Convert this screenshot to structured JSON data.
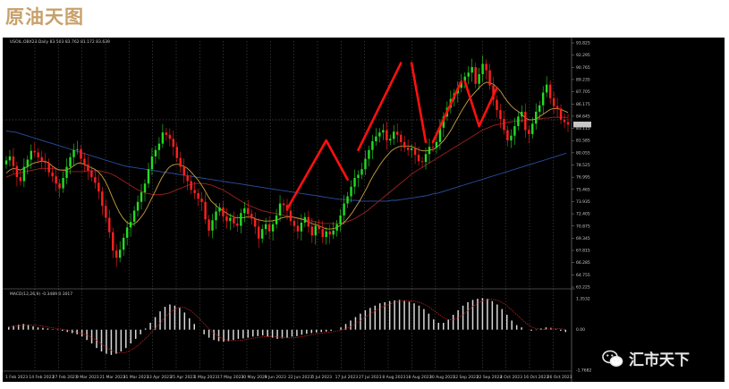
{
  "header": {
    "title": "原油天图"
  },
  "chart_info": {
    "symbol_line": "USOIL.OBX23.Daily 83.503 83.762 81.172 83.639",
    "macd_label": "MACD(12,26,9) -0.3489 0.3017",
    "price_tag": "83.639"
  },
  "watermark": {
    "text": "汇市天下",
    "icon": "wechat-icon"
  },
  "colors": {
    "bull": "#22dd22",
    "bear": "#ff2020",
    "ma_fast": "#c8a040",
    "ma_mid": "#a02020",
    "ma_slow": "#2a4fa0",
    "trend": "#ff1010"
  },
  "chart_data": {
    "type": "candlestick",
    "y_ticks": [
      "93.825",
      "92.295",
      "90.765",
      "89.235",
      "87.705",
      "86.175",
      "84.645",
      "83.115",
      "81.585",
      "80.055",
      "78.525",
      "76.995",
      "75.465",
      "73.935",
      "72.405",
      "70.875",
      "69.345",
      "67.815",
      "66.285",
      "64.755",
      "63.225"
    ],
    "ylim": [
      63.225,
      93.825
    ],
    "x_ticks": [
      "1 Feb 2023",
      "14 Feb 2023",
      "27 Feb 2023",
      "9 Mar 2023",
      "21 Mar 2023",
      "31 Mar 2023",
      "13 Apr 2023",
      "25 Apr 2023",
      "5 May 2023",
      "17 May 2023",
      "30 May 2023",
      "9 Jun 2023",
      "22 Jun 2023",
      "5 Jul 2023",
      "17 Jul 2023",
      "27 Jul 2023",
      "8 Aug 2023",
      "18 Aug 2023",
      "30 Aug 2023",
      "12 Sep 2023",
      "22 Sep 2023",
      "4 Oct 2023",
      "16 Oct 2023",
      "26 Oct 2023"
    ],
    "close": [
      79.1,
      79.6,
      78.4,
      77.0,
      76.5,
      78.3,
      79.2,
      80.3,
      80.1,
      79.5,
      79.0,
      78.8,
      77.6,
      77.1,
      76.2,
      75.6,
      76.9,
      78.3,
      79.5,
      80.4,
      80.5,
      79.3,
      78.6,
      77.8,
      77.0,
      76.3,
      75.2,
      73.4,
      71.9,
      70.1,
      67.8,
      66.9,
      67.9,
      69.4,
      70.7,
      71.4,
      72.8,
      73.9,
      75.1,
      76.2,
      78.0,
      79.6,
      80.4,
      81.2,
      82.6,
      82.3,
      81.8,
      80.8,
      79.4,
      78.3,
      77.2,
      76.5,
      75.4,
      75.0,
      74.3,
      73.9,
      71.7,
      70.3,
      71.6,
      72.7,
      73.2,
      72.1,
      71.5,
      71.9,
      71.2,
      70.9,
      72.5,
      73.1,
      72.4,
      71.8,
      70.8,
      69.3,
      70.5,
      71.1,
      70.2,
      71.1,
      72.2,
      73.7,
      73.5,
      72.8,
      71.5,
      70.9,
      70.2,
      71.3,
      72.0,
      70.8,
      69.7,
      70.9,
      70.5,
      69.5,
      70.2,
      69.8,
      70.3,
      71.1,
      72.2,
      73.7,
      74.6,
      75.8,
      76.9,
      77.3,
      78.0,
      79.3,
      80.4,
      81.5,
      82.1,
      82.6,
      82.9,
      81.6,
      81.8,
      82.7,
      82.3,
      81.4,
      80.7,
      80.4,
      80.6,
      79.8,
      79.0,
      78.9,
      79.9,
      80.8,
      80.7,
      81.4,
      83.2,
      84.6,
      85.7,
      86.8,
      87.5,
      88.2,
      88.9,
      89.6,
      90.1,
      90.8,
      88.7,
      89.9,
      91.2,
      90.4,
      88.5,
      86.7,
      85.4,
      84.3,
      82.9,
      81.6,
      82.2,
      83.4,
      84.6,
      85.2,
      82.9,
      82.4,
      83.7,
      85.2,
      86.0,
      87.6,
      88.6,
      86.9,
      85.9,
      85.6,
      84.2,
      83.9,
      83.6
    ],
    "ma_fast": [
      77.5,
      77.9,
      78.1,
      78.0,
      77.9,
      78.1,
      78.3,
      78.6,
      78.8,
      78.9,
      79.0,
      79.0,
      78.8,
      78.4,
      78.1,
      77.9,
      77.9,
      77.9,
      78.1,
      78.4,
      78.7,
      78.8,
      78.6,
      78.4,
      78.2,
      78.0,
      77.7,
      77.2,
      76.5,
      75.6,
      74.5,
      73.5,
      72.6,
      71.9,
      71.4,
      71.1,
      71.1,
      71.4,
      71.9,
      72.5,
      73.3,
      74.2,
      75.1,
      76.0,
      76.9,
      77.6,
      78.2,
      78.5,
      78.6,
      78.6,
      78.4,
      78.2,
      77.8,
      77.3,
      76.8,
      76.2,
      75.5,
      74.7,
      74.0,
      73.6,
      73.2,
      72.9,
      72.6,
      72.3,
      72.1,
      71.9,
      71.9,
      71.9,
      72.0,
      72.0,
      71.9,
      71.7,
      71.6,
      71.5,
      71.5,
      71.5,
      71.6,
      71.7,
      71.9,
      72.0,
      72.0,
      72.0,
      71.9,
      71.8,
      71.7,
      71.5,
      71.3,
      71.1,
      71.0,
      70.8,
      70.6,
      70.5,
      70.5,
      70.6,
      70.8,
      71.1,
      71.5,
      72.0,
      72.6,
      73.3,
      74.0,
      74.8,
      75.6,
      76.5,
      77.3,
      78.0,
      78.7,
      79.3,
      79.8,
      80.3,
      80.6,
      80.8,
      80.9,
      80.9,
      80.9,
      80.8,
      80.6,
      80.4,
      80.3,
      80.3,
      80.4,
      80.5,
      80.8,
      81.2,
      81.7,
      82.3,
      83.0,
      83.8,
      84.6,
      85.4,
      86.1,
      86.8,
      87.3,
      87.8,
      88.3,
      88.7,
      88.9,
      88.8,
      88.6,
      88.2,
      87.7,
      87.0,
      86.4,
      85.9,
      85.5,
      85.2,
      84.8,
      84.4,
      84.2,
      84.2,
      84.3,
      84.6,
      84.9,
      85.2,
      85.5,
      85.6,
      85.6,
      85.5,
      85.3,
      85.1
    ],
    "ma_mid": [
      77.0,
      77.2,
      77.4,
      77.5,
      77.6,
      77.7,
      77.8,
      77.9,
      78.0,
      78.1,
      78.1,
      78.1,
      78.1,
      78.0,
      77.9,
      77.8,
      77.7,
      77.7,
      77.7,
      77.7,
      77.7,
      77.8,
      77.8,
      77.8,
      77.8,
      77.7,
      77.6,
      77.4,
      77.2,
      76.9,
      76.6,
      76.3,
      76.0,
      75.7,
      75.4,
      75.2,
      75.0,
      74.9,
      74.8,
      74.8,
      74.8,
      74.9,
      75.0,
      75.2,
      75.4,
      75.6,
      75.8,
      76.0,
      76.1,
      76.2,
      76.2,
      76.2,
      76.1,
      76.0,
      75.8,
      75.6,
      75.4,
      75.1,
      74.8,
      74.5,
      74.2,
      73.9,
      73.6,
      73.4,
      73.2,
      73.0,
      72.8,
      72.7,
      72.6,
      72.5,
      72.4,
      72.3,
      72.2,
      72.1,
      72.0,
      71.9,
      71.8,
      71.7,
      71.6,
      71.5,
      71.4,
      71.3,
      71.2,
      71.2,
      71.2,
      71.2,
      71.2,
      71.3,
      71.4,
      71.6,
      71.8,
      72.1,
      72.4,
      72.7,
      73.1,
      73.5,
      73.9,
      74.3,
      74.7,
      75.1,
      75.5,
      75.9,
      76.3,
      76.7,
      77.1,
      77.5,
      77.8,
      78.1,
      78.4,
      78.7,
      79.0,
      79.3,
      79.6,
      79.9,
      80.2,
      80.5,
      80.8,
      81.1,
      81.4,
      81.7,
      82.0,
      82.3,
      82.6,
      82.9,
      83.1,
      83.3,
      83.5,
      83.6,
      83.7,
      83.8,
      83.9,
      84.0,
      84.0,
      84.1,
      84.1,
      84.2,
      84.2,
      84.3,
      84.3,
      84.4,
      84.4,
      84.5,
      84.5,
      84.5,
      84.5,
      84.5
    ],
    "ma_slow": [
      82.8,
      82.7,
      82.6,
      82.4,
      82.2,
      82.0,
      81.8,
      81.6,
      81.4,
      81.2,
      81.0,
      80.8,
      80.6,
      80.4,
      80.2,
      80.0,
      79.8,
      79.6,
      79.4,
      79.2,
      79.0,
      78.8,
      78.6,
      78.4,
      78.3,
      78.2,
      78.1,
      78.0,
      77.9,
      77.8,
      77.7,
      77.6,
      77.5,
      77.4,
      77.3,
      77.2,
      77.1,
      77.0,
      76.9,
      76.8,
      76.7,
      76.6,
      76.5,
      76.4,
      76.3,
      76.2,
      76.1,
      76.0,
      75.9,
      75.8,
      75.7,
      75.6,
      75.5,
      75.4,
      75.3,
      75.2,
      75.1,
      75.0,
      74.9,
      74.8,
      74.7,
      74.6,
      74.5,
      74.4,
      74.3,
      74.2,
      74.2,
      74.1,
      74.1,
      74.0,
      74.0,
      74.0,
      74.0,
      74.0,
      74.0,
      74.1,
      74.1,
      74.2,
      74.3,
      74.4,
      74.5,
      74.6,
      74.7,
      74.9,
      75.0,
      75.2,
      75.4,
      75.6,
      75.8,
      76.0,
      76.2,
      76.4,
      76.6,
      76.8,
      77.0,
      77.2,
      77.4,
      77.6,
      77.8,
      78.0,
      78.2,
      78.4,
      78.6,
      78.8,
      79.0,
      79.2,
      79.4,
      79.6,
      79.8,
      80.0
    ],
    "trend_segments": [
      [
        [
          79,
          73.0
        ],
        [
          90,
          81.6
        ]
      ],
      [
        [
          90,
          81.6
        ],
        [
          96,
          76.7
        ]
      ],
      [
        [
          99,
          80.4
        ],
        [
          111,
          91.3
        ]
      ],
      [
        [
          114,
          91.3
        ],
        [
          118,
          81.4
        ]
      ],
      [
        [
          120,
          81.4
        ],
        [
          128,
          89.0
        ]
      ],
      [
        [
          129,
          89.0
        ],
        [
          133,
          83.4
        ]
      ],
      [
        [
          133,
          83.4
        ],
        [
          138,
          88.2
        ]
      ]
    ],
    "macd": [
      0.12,
      0.18,
      0.22,
      0.25,
      0.2,
      0.15,
      0.1,
      0.08,
      0.05,
      0.02,
      -0.02,
      -0.05,
      -0.1,
      -0.15,
      -0.2,
      -0.3,
      -0.45,
      -0.6,
      -0.8,
      -0.95,
      -1.05,
      -1.1,
      -1.05,
      -0.95,
      -0.8,
      -0.6,
      -0.4,
      -0.2,
      0.05,
      0.3,
      0.55,
      0.8,
      1.0,
      1.1,
      1.05,
      0.95,
      0.75,
      0.5,
      0.25,
      0.0,
      -0.2,
      -0.35,
      -0.45,
      -0.5,
      -0.52,
      -0.5,
      -0.45,
      -0.4,
      -0.38,
      -0.35,
      -0.3,
      -0.28,
      -0.25,
      -0.3,
      -0.35,
      -0.4,
      -0.38,
      -0.35,
      -0.3,
      -0.28,
      -0.22,
      -0.18,
      -0.15,
      -0.12,
      -0.1,
      -0.08,
      -0.05,
      0.0,
      0.1,
      0.25,
      0.4,
      0.55,
      0.7,
      0.85,
      0.95,
      1.05,
      1.15,
      1.2,
      1.25,
      1.28,
      1.3,
      1.28,
      1.22,
      1.15,
      1.05,
      0.9,
      0.7,
      0.45,
      0.3,
      0.3,
      0.45,
      0.65,
      0.85,
      1.05,
      1.2,
      1.3,
      1.35,
      1.38,
      1.35,
      1.25,
      1.1,
      0.9,
      0.65,
      0.4,
      0.2,
      0.1,
      0.0,
      -0.05,
      -0.02,
      0.05,
      0.1,
      0.08,
      0.02,
      -0.05,
      -0.1
    ],
    "macd_ylim": [
      -1.7682,
      1.3532
    ],
    "macd_ticks": [
      "1.3532",
      "0.00",
      "-1.7682"
    ]
  }
}
